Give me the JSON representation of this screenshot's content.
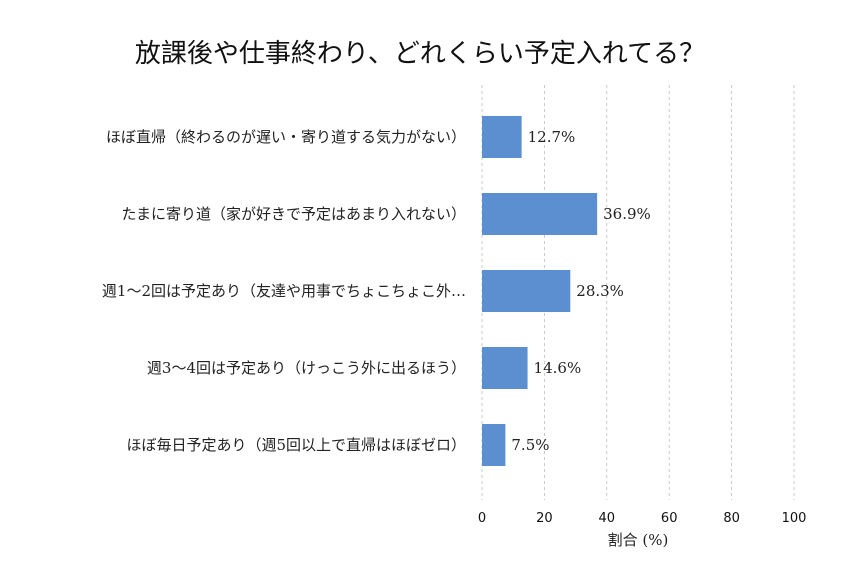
{
  "chart_data": {
    "type": "bar",
    "orientation": "horizontal",
    "title": "放課後や仕事終わり、どれくらい予定入れてる？",
    "xlabel": "割合 (%)",
    "ylabel": "",
    "xlim": [
      0,
      100
    ],
    "xticks": [
      "0",
      "20",
      "40",
      "60",
      "80",
      "100"
    ],
    "grid": true,
    "bar_color": "#5b8fd0",
    "categories": [
      "ほぼ直帰（終わるのが遅い・寄り道する気力がない）",
      "たまに寄り道（家が好きで予定はあまり入れない）",
      "週1〜2回は予定あり（友達や用事でちょこちょこ外…",
      "週3〜4回は予定あり（けっこう外に出るほう）",
      "ほぼ毎日予定あり（週5回以上で直帰はほぼゼロ）"
    ],
    "values": [
      12.7,
      36.9,
      28.3,
      14.6,
      7.5
    ],
    "data_labels": [
      "12.7%",
      "36.9%",
      "28.3%",
      "14.6%",
      "7.5%"
    ]
  }
}
